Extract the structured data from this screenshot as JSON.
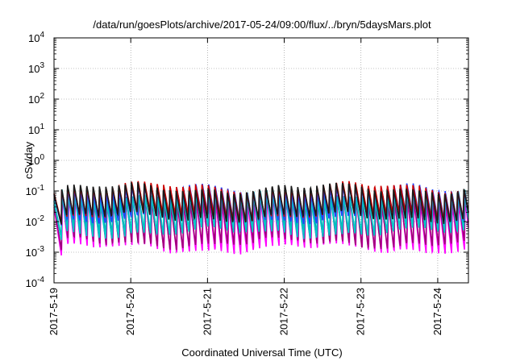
{
  "chart_data": {
    "type": "line",
    "title": "/data/run/goesPlots/archive/2017-05-24/09:00/flux/../bryn/5daysMars.plot",
    "xlabel": "Coordinated Universal Time (UTC)",
    "ylabel": "cSv/day",
    "y_scale": "log",
    "ylim": [
      0.0001,
      10000
    ],
    "y_ticks": [
      {
        "value": 0.0001,
        "base": "10",
        "exp": "-4"
      },
      {
        "value": 0.001,
        "base": "10",
        "exp": "-3"
      },
      {
        "value": 0.01,
        "base": "10",
        "exp": "-2"
      },
      {
        "value": 0.1,
        "base": "10",
        "exp": "-1"
      },
      {
        "value": 1,
        "base": "10",
        "exp": "0"
      },
      {
        "value": 10,
        "base": "10",
        "exp": "1"
      },
      {
        "value": 100,
        "base": "10",
        "exp": "2"
      },
      {
        "value": 1000,
        "base": "10",
        "exp": "3"
      },
      {
        "value": 10000,
        "base": "10",
        "exp": "4"
      }
    ],
    "x_start": "2017-05-19",
    "xlim_days": [
      0,
      5.4
    ],
    "x_ticks": [
      {
        "day": 0,
        "label": "2017-5-19"
      },
      {
        "day": 1,
        "label": "2017-5-20"
      },
      {
        "day": 2,
        "label": "2017-5-21"
      },
      {
        "day": 3,
        "label": "2017-5-22"
      },
      {
        "day": 4,
        "label": "2017-5-23"
      },
      {
        "day": 5,
        "label": "2017-5-24"
      }
    ],
    "grid": true,
    "grid_style": "dotted",
    "orbit_period_days": 0.0833,
    "series": [
      {
        "color": "#ff00ff",
        "peak": 0.05,
        "trough": 0.0012
      },
      {
        "color": "#a0007a",
        "peak": 0.06,
        "trough": 0.0018
      },
      {
        "color": "#00aaaa",
        "peak": 0.08,
        "trough": 0.005
      },
      {
        "color": "#00c8c8",
        "peak": 0.075,
        "trough": 0.004
      },
      {
        "color": "#2040ff",
        "peak": 0.12,
        "trough": 0.012
      },
      {
        "color": "#cc0000",
        "peak": 0.14,
        "trough": 0.015
      },
      {
        "color": "#1a1a1a",
        "peak": 0.13,
        "trough": 0.013
      }
    ]
  }
}
